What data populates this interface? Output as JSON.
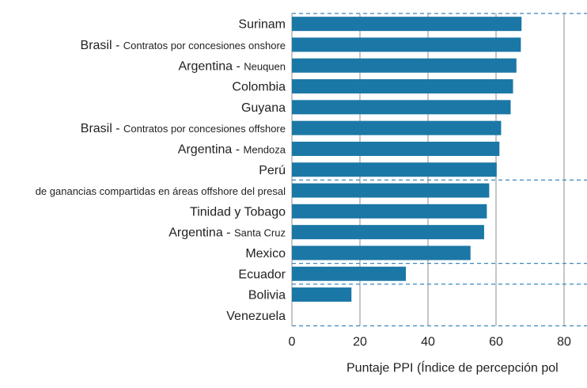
{
  "chart_data": {
    "type": "bar",
    "orientation": "horizontal",
    "categories": [
      {
        "main": "Surinam",
        "sub": ""
      },
      {
        "main": "Brasil - ",
        "sub": "Contratos por concesiones onshore"
      },
      {
        "main": "Argentina - ",
        "sub": "Neuquen"
      },
      {
        "main": "Colombia",
        "sub": ""
      },
      {
        "main": "Guyana",
        "sub": ""
      },
      {
        "main": "Brasil - ",
        "sub": "Contratos por concesiones offshore"
      },
      {
        "main": "Argentina - ",
        "sub": "Mendoza"
      },
      {
        "main": "Perú",
        "sub": ""
      },
      {
        "main": "",
        "sub": "de ganancias compartidas en áreas offshore del presal"
      },
      {
        "main": "Tinidad y Tobago",
        "sub": ""
      },
      {
        "main": "Argentina - ",
        "sub": "Santa Cruz"
      },
      {
        "main": "Mexico",
        "sub": ""
      },
      {
        "main": "Ecuador",
        "sub": ""
      },
      {
        "main": "Bolivia",
        "sub": ""
      },
      {
        "main": "Venezuela",
        "sub": ""
      }
    ],
    "values": [
      67.5,
      67.3,
      66.0,
      65.0,
      64.3,
      61.5,
      61.0,
      60.2,
      58.0,
      57.3,
      56.5,
      52.5,
      33.5,
      17.5,
      0
    ],
    "xlim": [
      0,
      80
    ],
    "xticks": [
      0,
      20,
      40,
      60,
      80
    ],
    "xlabel": "Puntaje PPI (Índice de percepción pol",
    "ylabel": "",
    "title": "",
    "grid": "vertical",
    "group_breaks_after": [
      -1,
      7,
      11,
      12,
      14
    ],
    "bar_color": "#1b77a6",
    "grid_color": "#8c8c8c",
    "dash_color": "#3a88c0",
    "text_color": "#222222"
  }
}
